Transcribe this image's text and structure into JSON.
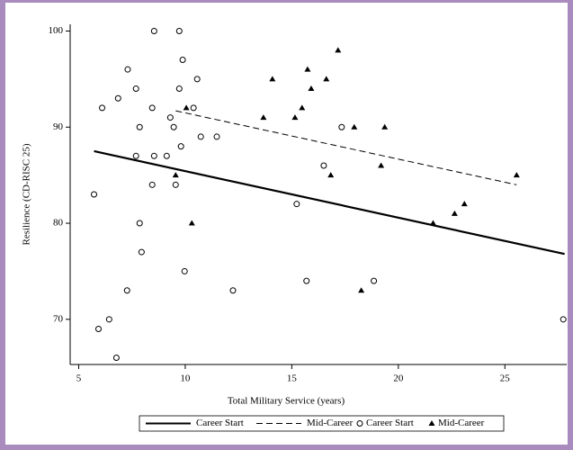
{
  "chart_data": {
    "type": "scatter",
    "xlabel": "Total Military Service (years)",
    "ylabel": "Resilience (CD-RISC 25)",
    "xlim": [
      4.6,
      27.9
    ],
    "ylim": [
      65.3,
      100.7
    ],
    "xticks": [
      5,
      10,
      15,
      20,
      25
    ],
    "yticks": [
      70,
      80,
      90,
      100
    ],
    "series": [
      {
        "name": "Career Start",
        "kind": "line",
        "dash": false,
        "color": "#000000",
        "x": [
          5.72,
          27.8
        ],
        "values": [
          87.5,
          76.8
        ]
      },
      {
        "name": "Mid-Career",
        "kind": "line",
        "dash": true,
        "color": "#000000",
        "x": [
          9.55,
          25.55
        ],
        "values": [
          91.7,
          84.0
        ]
      },
      {
        "name": "Career Start",
        "kind": "marker",
        "marker": "circle",
        "color": "#000000",
        "x": [
          8.54,
          9.72,
          9.88,
          7.3,
          10.56,
          7.69,
          9.72,
          6.85,
          6.1,
          8.45,
          10.39,
          9.3,
          7.86,
          9.46,
          17.34,
          10.73,
          11.48,
          9.8,
          7.69,
          8.54,
          9.13,
          16.5,
          8.45,
          9.55,
          5.72,
          15.23,
          7.86,
          7.95,
          9.97,
          15.69,
          18.85,
          7.27,
          12.24,
          6.43,
          27.74,
          5.93,
          6.77
        ],
        "values": [
          100,
          100,
          97,
          96,
          95,
          94,
          94,
          93,
          92,
          92,
          92,
          91,
          90,
          90,
          90,
          89,
          89,
          88,
          87,
          87,
          87,
          86,
          84,
          84,
          83,
          82,
          80,
          77,
          75,
          74,
          74,
          73,
          73,
          70,
          70,
          69,
          66
        ]
      },
      {
        "name": "Mid-Career",
        "kind": "marker",
        "marker": "triangle",
        "color": "#000000",
        "x": [
          17.17,
          15.74,
          14.09,
          16.62,
          15.91,
          10.05,
          15.48,
          13.67,
          15.15,
          17.93,
          19.36,
          19.19,
          16.83,
          9.55,
          25.55,
          23.1,
          22.64,
          21.63,
          10.31,
          18.26
        ],
        "values": [
          98,
          96,
          95,
          95,
          94,
          92,
          92,
          91,
          91,
          90,
          90,
          86,
          85,
          85,
          85,
          82,
          81,
          80,
          80,
          73
        ]
      }
    ]
  }
}
